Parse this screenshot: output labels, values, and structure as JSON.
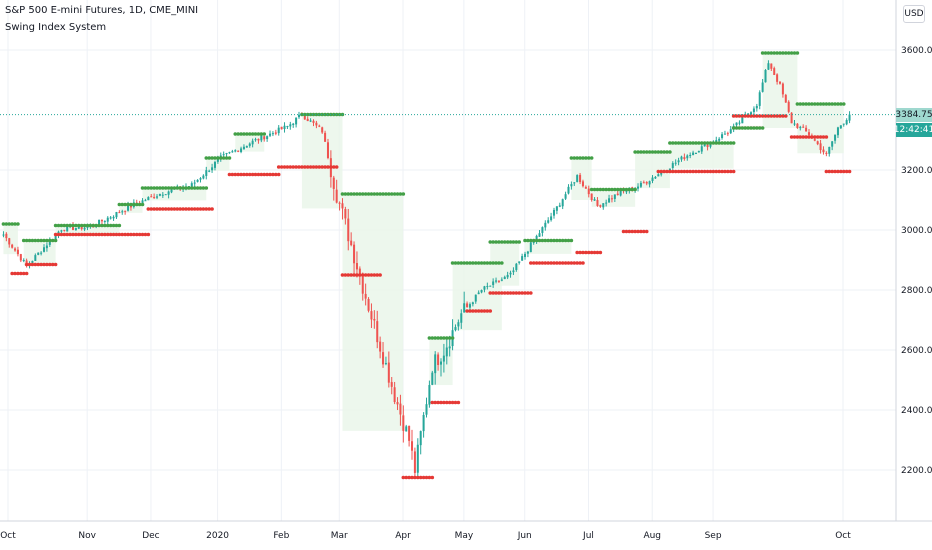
{
  "header": {
    "title": "S&P 500 E-mini Futures, 1D, CME_MINI",
    "indicator": "Swing Index System",
    "currency_button": "USD"
  },
  "price_tags": {
    "last_price": "3384.75",
    "countdown": "12:42:41"
  },
  "colors": {
    "up": "#26a69a",
    "down": "#ef5350",
    "swing_high": "#43a047",
    "swing_low": "#e53935",
    "fill_green": "#e8f5e9",
    "fill_red": "#fde0e0",
    "price_line": "#26a69a",
    "grid": "#eef1f6"
  },
  "chart_data": {
    "type": "candlestick",
    "title": "S&P 500 E-mini Futures, 1D, CME_MINI",
    "indicator": "Swing Index System",
    "y_ticks": [
      2200,
      2400,
      2600,
      2800,
      3000,
      3200,
      3600
    ],
    "y_tick_labels": [
      "2200.00",
      "2400.00",
      "2600.00",
      "2800.00",
      "3000.00",
      "3200.00",
      "3600.00"
    ],
    "ylim": [
      2120,
      3680
    ],
    "x_ticks": [
      "Oct",
      "Nov",
      "Dec",
      "2020",
      "Feb",
      "Mar",
      "Apr",
      "May",
      "Jun",
      "Jul",
      "Aug",
      "Sep",
      "Oct"
    ],
    "last_price": 3384.75,
    "path_anchors": [
      [
        0,
        2985
      ],
      [
        8,
        2880
      ],
      [
        20,
        3005
      ],
      [
        30,
        3010
      ],
      [
        45,
        3085
      ],
      [
        55,
        3125
      ],
      [
        65,
        3150
      ],
      [
        75,
        3240
      ],
      [
        85,
        3290
      ],
      [
        98,
        3345
      ],
      [
        103,
        3385
      ],
      [
        110,
        3330
      ],
      [
        115,
        3120
      ],
      [
        125,
        2780
      ],
      [
        135,
        2450
      ],
      [
        140,
        2300
      ],
      [
        142,
        2200
      ],
      [
        148,
        2550
      ],
      [
        152,
        2600
      ],
      [
        158,
        2720
      ],
      [
        165,
        2800
      ],
      [
        175,
        2850
      ],
      [
        182,
        2950
      ],
      [
        190,
        3060
      ],
      [
        198,
        3180
      ],
      [
        205,
        3080
      ],
      [
        212,
        3120
      ],
      [
        220,
        3150
      ],
      [
        228,
        3200
      ],
      [
        236,
        3250
      ],
      [
        244,
        3290
      ],
      [
        252,
        3340
      ],
      [
        260,
        3420
      ],
      [
        264,
        3560
      ],
      [
        268,
        3480
      ],
      [
        272,
        3360
      ],
      [
        278,
        3320
      ],
      [
        284,
        3250
      ],
      [
        288,
        3340
      ],
      [
        292,
        3384
      ]
    ],
    "swing_segments": [
      {
        "type": "high",
        "start": 0,
        "end": 5,
        "level": 3020
      },
      {
        "type": "low",
        "start": 3,
        "end": 8,
        "level": 2855
      },
      {
        "type": "low",
        "start": 8,
        "end": 18,
        "level": 2885
      },
      {
        "type": "high",
        "start": 7,
        "end": 18,
        "level": 2965
      },
      {
        "type": "high",
        "start": 18,
        "end": 40,
        "level": 3015
      },
      {
        "type": "low",
        "start": 18,
        "end": 50,
        "level": 2985
      },
      {
        "type": "high",
        "start": 40,
        "end": 48,
        "level": 3085
      },
      {
        "type": "high",
        "start": 48,
        "end": 70,
        "level": 3140
      },
      {
        "type": "low",
        "start": 50,
        "end": 72,
        "level": 3070
      },
      {
        "type": "high",
        "start": 70,
        "end": 78,
        "level": 3240
      },
      {
        "type": "low",
        "start": 78,
        "end": 95,
        "level": 3185
      },
      {
        "type": "high",
        "start": 80,
        "end": 90,
        "level": 3320
      },
      {
        "type": "low",
        "start": 95,
        "end": 115,
        "level": 3210
      },
      {
        "type": "high",
        "start": 103,
        "end": 117,
        "level": 3385
      },
      {
        "type": "high",
        "start": 117,
        "end": 138,
        "level": 3120
      },
      {
        "type": "low",
        "start": 117,
        "end": 130,
        "level": 2850
      },
      {
        "type": "low",
        "start": 138,
        "end": 148,
        "level": 2175
      },
      {
        "type": "high",
        "start": 147,
        "end": 155,
        "level": 2640
      },
      {
        "type": "low",
        "start": 148,
        "end": 157,
        "level": 2425
      },
      {
        "type": "high",
        "start": 155,
        "end": 172,
        "level": 2890
      },
      {
        "type": "low",
        "start": 160,
        "end": 168,
        "level": 2730
      },
      {
        "type": "high",
        "start": 168,
        "end": 178,
        "level": 2960
      },
      {
        "type": "low",
        "start": 168,
        "end": 182,
        "level": 2790
      },
      {
        "type": "low",
        "start": 182,
        "end": 200,
        "level": 2890
      },
      {
        "type": "high",
        "start": 180,
        "end": 196,
        "level": 2965
      },
      {
        "type": "high",
        "start": 196,
        "end": 203,
        "level": 3240
      },
      {
        "type": "low",
        "start": 198,
        "end": 206,
        "level": 2925
      },
      {
        "type": "high",
        "start": 203,
        "end": 218,
        "level": 3135
      },
      {
        "type": "low",
        "start": 214,
        "end": 222,
        "level": 2995
      },
      {
        "type": "high",
        "start": 218,
        "end": 230,
        "level": 3260
      },
      {
        "type": "low",
        "start": 226,
        "end": 252,
        "level": 3195
      },
      {
        "type": "high",
        "start": 230,
        "end": 252,
        "level": 3290
      },
      {
        "type": "high",
        "start": 252,
        "end": 262,
        "level": 3340
      },
      {
        "type": "low",
        "start": 252,
        "end": 270,
        "level": 3380
      },
      {
        "type": "high",
        "start": 262,
        "end": 274,
        "level": 3590
      },
      {
        "type": "high",
        "start": 274,
        "end": 290,
        "level": 3420
      },
      {
        "type": "low",
        "start": 272,
        "end": 284,
        "level": 3310
      },
      {
        "type": "low",
        "start": 284,
        "end": 292,
        "level": 3195
      }
    ],
    "grid": true
  }
}
